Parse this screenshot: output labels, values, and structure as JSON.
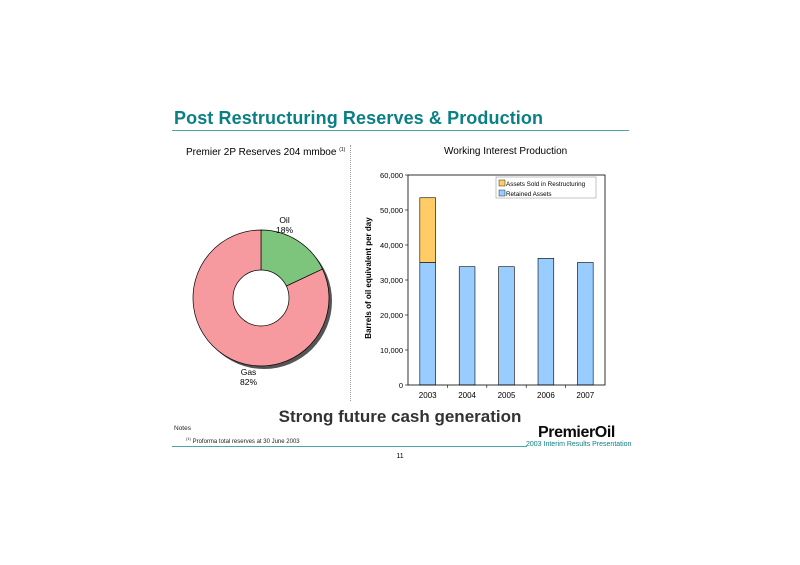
{
  "header": {
    "title": "Post Restructuring Reserves & Production"
  },
  "pie": {
    "title": "Premier 2P Reserves 204 mmboe",
    "title_note": "(1)",
    "slices": [
      {
        "label": "Oil",
        "pct_label": "18%",
        "value": 18,
        "color": "#7dc57d"
      },
      {
        "label": "Gas",
        "pct_label": "82%",
        "value": 82,
        "color": "#f79aa0"
      }
    ]
  },
  "chart_data": {
    "type": "bar",
    "title": "Working Interest Production",
    "ylabel": "Barrels of oil equivalent per day",
    "xlabel": "",
    "categories": [
      "2003",
      "2004",
      "2005",
      "2006",
      "2007"
    ],
    "stacked": true,
    "series": [
      {
        "name": "Retained Assets",
        "color": "#99ccff",
        "values": [
          35000,
          33800,
          33800,
          36200,
          35000
        ]
      },
      {
        "name": "Assets Sold in Restructuring",
        "color": "#ffcc66",
        "values": [
          18500,
          0,
          0,
          0,
          0
        ]
      }
    ],
    "ylim": [
      0,
      60000
    ],
    "yticks": [
      "0",
      "10,000",
      "20,000",
      "30,000",
      "40,000",
      "50,000",
      "60,000"
    ],
    "legend": [
      "Assets Sold in Restructuring",
      "Retained Assets"
    ],
    "legend_position": "top-right",
    "grid": false
  },
  "subtitle": "Strong future cash generation",
  "notes": {
    "heading": "Notes",
    "marker": "(1)",
    "text": "Proforma total reserves at 30 June 2003"
  },
  "footer": {
    "logo": "PremierOil",
    "caption": "2003 Interim Results Presentation",
    "page": "11"
  }
}
